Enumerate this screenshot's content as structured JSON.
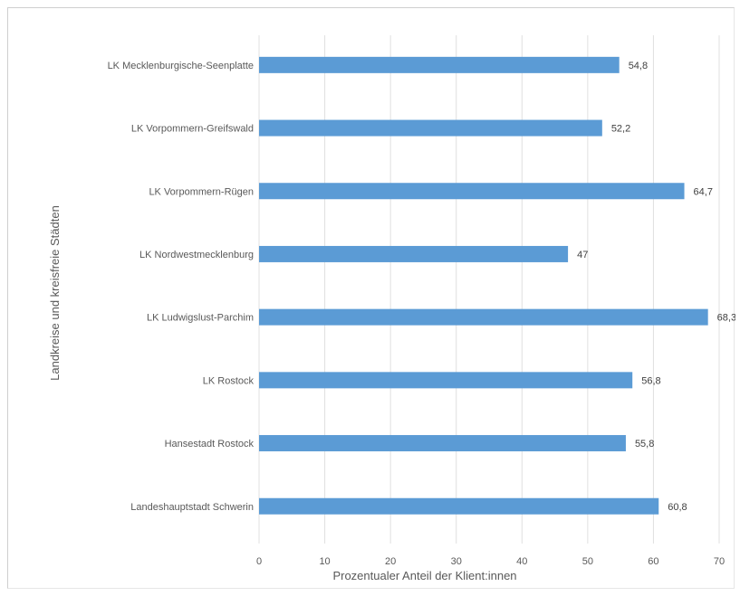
{
  "chart_data": {
    "type": "bar",
    "orientation": "horizontal",
    "categories": [
      "LK Mecklenburgische-Seenplatte",
      "LK Vorpommern-Greifswald",
      "LK Vorpommern-Rügen",
      "LK Nordwestmecklenburg",
      "LK Ludwigslust-Parchim",
      "LK Rostock",
      "Hansestadt Rostock",
      "Landeshauptstadt Schwerin"
    ],
    "values": [
      54.8,
      52.2,
      64.7,
      47,
      68.3,
      56.8,
      55.8,
      60.8
    ],
    "value_labels": [
      "54,8",
      "52,2",
      "64,7",
      "47",
      "68,3",
      "56,8",
      "55,8",
      "60,8"
    ],
    "xlabel": "Prozentualer Anteil der Klient:innen",
    "ylabel": "Landkreise und  kreisfreie Städten",
    "xlim": [
      0,
      70
    ],
    "xticks": [
      0,
      10,
      20,
      30,
      40,
      50,
      60,
      70
    ],
    "grid": "vertical",
    "legend": "none",
    "colors": {
      "bar": "#5b9bd5",
      "grid": "#e0e0e0",
      "text": "#595959"
    }
  }
}
